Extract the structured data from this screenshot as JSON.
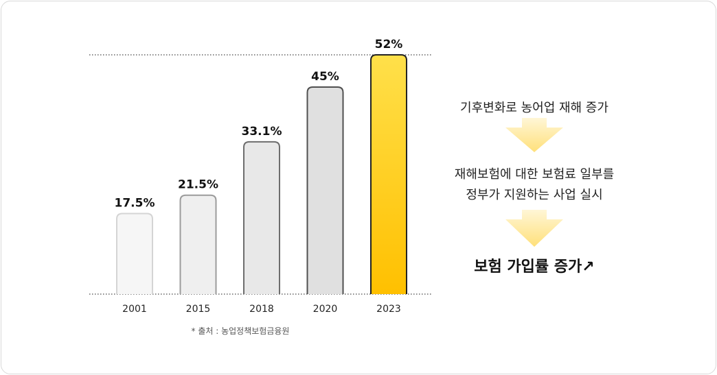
{
  "chart_data": {
    "type": "bar",
    "categories": [
      "2001",
      "2015",
      "2018",
      "2020",
      "2023"
    ],
    "values": [
      17.5,
      21.5,
      33.1,
      45,
      52
    ],
    "value_labels": [
      "17.5%",
      "21.5%",
      "33.1%",
      "45%",
      "52%"
    ],
    "ylim": [
      0,
      52
    ],
    "grid": "dotted lines at top and baseline",
    "colors": {
      "fills": [
        "#f6f6f6",
        "#efefef",
        "#e8e8e8",
        "#e0e0e0",
        "#ffc400"
      ],
      "strokes": [
        "#d4d4d4",
        "#9b9b9b",
        "#6d6d6d",
        "#4f4f4f",
        "#222222"
      ],
      "highlight_gradient": [
        "#ffe04a",
        "#ffc000"
      ]
    }
  },
  "source_note": "* 출처 : 농업정책보험금융원",
  "flow": {
    "step1": "기후변화로 농어업 재해 증가",
    "step2_line1": "재해보험에 대한 보험료 일부를",
    "step2_line2": "정부가 지원하는 사업 실시",
    "step3": "보험 가입률 증가↗",
    "arrow_color": "#ffe58a"
  }
}
